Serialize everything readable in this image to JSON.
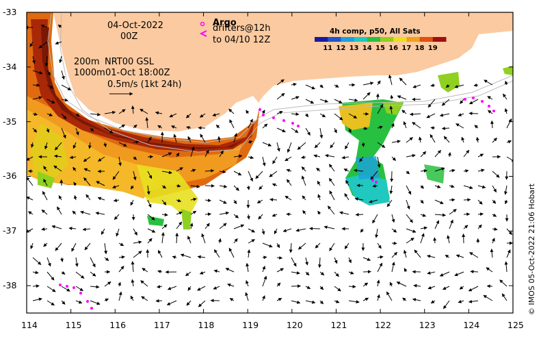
{
  "title": {
    "date": "04-Oct-2022",
    "time": "00Z"
  },
  "legend": {
    "argo_label": "Argo",
    "drifters_line1": "drifters@12h",
    "drifters_line2": "to 04/10 12Z",
    "argo_color": "#ff00ff"
  },
  "contours": {
    "label_200": "200m",
    "label_1000": "1000m"
  },
  "current_source": {
    "name": "NRT00 GSL",
    "date": "01-Oct 18:00Z"
  },
  "scale_arrow": {
    "label": "0.5m/s (1kt 24h)"
  },
  "colorbar": {
    "title": "4h comp, p50, All Sats",
    "labels": [
      "11",
      "12",
      "13",
      "14",
      "15",
      "16",
      "17",
      "18",
      "19"
    ],
    "colors": [
      "#1a1aa0",
      "#1f55d0",
      "#1aa0e0",
      "#20c8c0",
      "#28c040",
      "#90d020",
      "#e8e020",
      "#f0a020",
      "#e05010",
      "#a01010"
    ]
  },
  "axes": {
    "x_ticks": [
      "114",
      "115",
      "116",
      "117",
      "118",
      "119",
      "120",
      "121",
      "122",
      "123",
      "124",
      "125"
    ],
    "y_ticks": [
      "-33",
      "-34",
      "-35",
      "-36",
      "-37",
      "-38"
    ],
    "x_range": [
      114,
      125
    ],
    "y_range": [
      -38.5,
      -33
    ]
  },
  "credit": "© IMOS 05-Oct-2022 21:06 Hobart",
  "colors": {
    "land": "#fbcaa0",
    "frame": "#000000"
  }
}
